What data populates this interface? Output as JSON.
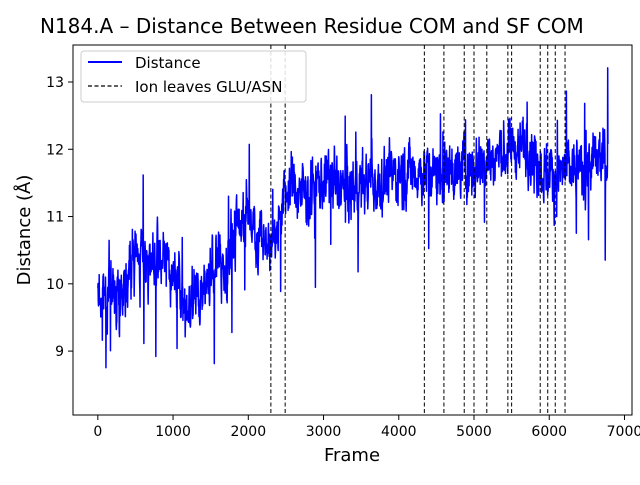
{
  "chart_data": {
    "type": "line",
    "title": "N184.A – Distance Between Residue COM and SF COM",
    "xlabel": "Frame",
    "ylabel": "Distance (Å)",
    "xlim": [
      -330,
      7100
    ],
    "ylim": [
      8.05,
      13.55
    ],
    "xticks": [
      0,
      1000,
      2000,
      3000,
      4000,
      5000,
      6000,
      7000
    ],
    "xtick_labels": [
      "0",
      "1000",
      "2000",
      "3000",
      "4000",
      "5000",
      "6000",
      "7000"
    ],
    "yticks": [
      9,
      10,
      11,
      12,
      13
    ],
    "ytick_labels": [
      "9",
      "10",
      "11",
      "12",
      "13"
    ],
    "grid": false,
    "legend": {
      "placement": "top-left",
      "entries": [
        {
          "label": "Distance",
          "style": "solid",
          "color": "#0000ff"
        },
        {
          "label": "Ion leaves GLU/ASN",
          "style": "dashed",
          "color": "#000000"
        }
      ]
    },
    "series": [
      {
        "name": "Distance",
        "color": "#0000ff",
        "frames": [
          0,
          6780
        ],
        "trend_x": [
          0,
          150,
          300,
          450,
          600,
          750,
          900,
          1050,
          1150,
          1250,
          1400,
          1550,
          1700,
          1850,
          2000,
          2150,
          2300,
          2400,
          2550,
          2800,
          3000,
          3300,
          3600,
          3900,
          4200,
          4500,
          4800,
          5100,
          5300,
          5500,
          5700,
          5900,
          6100,
          6300,
          6500,
          6780
        ],
        "trend_y": [
          9.8,
          9.9,
          9.8,
          10.3,
          10.5,
          10.2,
          10.4,
          10.0,
          9.6,
          9.8,
          9.9,
          10.3,
          10.2,
          10.9,
          11.1,
          10.7,
          10.6,
          11.0,
          11.5,
          11.3,
          11.6,
          11.4,
          11.5,
          11.6,
          11.7,
          11.6,
          11.7,
          11.8,
          11.9,
          12.0,
          12.1,
          11.7,
          11.6,
          11.7,
          11.7,
          11.9
        ],
        "envelope_max": 13.22,
        "envelope_min": 8.25
      }
    ],
    "vlines": {
      "name": "Ion leaves GLU/ASN",
      "color": "#000000",
      "x": [
        2300,
        2490,
        4340,
        4600,
        4870,
        5000,
        5170,
        5450,
        5500,
        5880,
        5980,
        6080,
        6210
      ]
    }
  }
}
